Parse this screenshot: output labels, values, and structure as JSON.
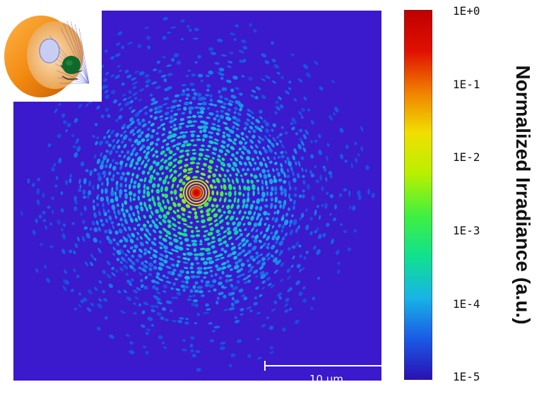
{
  "chart_data": {
    "type": "heatmap",
    "description_quantity": "Normalized Irradiance (a.u.)",
    "colorbar": {
      "title": "Normalized Irradiance (a.u.)",
      "scale": "log",
      "range": [
        1e-05,
        1
      ],
      "tick_labels": [
        "1E+0",
        "1E-1",
        "1E-2",
        "1E-3",
        "1E-4",
        "1E-5"
      ],
      "colormap": [
        "#2a0fb4",
        "#1a5ae6",
        "#18b4e6",
        "#10e090",
        "#40f040",
        "#b8f000",
        "#f0e000",
        "#f08000",
        "#e01000",
        "#c00000"
      ]
    },
    "scale_bar": {
      "label": "10 µm",
      "length_um": 10
    },
    "colors": {
      "background": "#3a1acc",
      "peak": "#d40000"
    }
  }
}
